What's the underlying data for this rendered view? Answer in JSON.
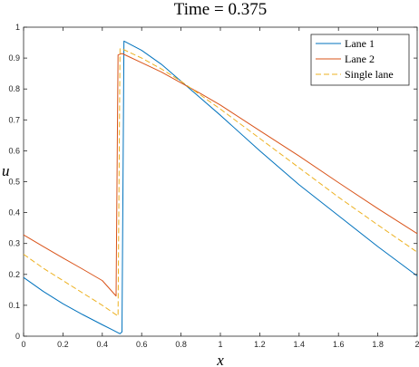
{
  "chart_data": {
    "type": "line",
    "title": "Time = 0.375",
    "xlabel": "x",
    "ylabel": "u",
    "xlim": [
      0,
      2
    ],
    "ylim": [
      0,
      1
    ],
    "xticks": [
      0,
      0.2,
      0.4,
      0.6,
      0.8,
      1,
      1.2,
      1.4,
      1.6,
      1.8,
      2
    ],
    "xtick_labels": [
      "0",
      "0.2",
      "0.4",
      "0.6",
      "0.8",
      "1",
      "1.2",
      "1.4",
      "1.6",
      "1.8",
      "2"
    ],
    "yticks": [
      0,
      0.1,
      0.2,
      0.3,
      0.4,
      0.5,
      0.6,
      0.7,
      0.8,
      0.9,
      1
    ],
    "ytick_labels": [
      "0",
      "0.1",
      "0.2",
      "0.3",
      "0.4",
      "0.5",
      "0.6",
      "0.7",
      "0.8",
      "0.9",
      "1"
    ],
    "grid": false,
    "legend_position": "top-right",
    "series": [
      {
        "name": "Lane 1",
        "color": "#0072BD",
        "style": "solid",
        "x": [
          0,
          0.1,
          0.2,
          0.3,
          0.4,
          0.45,
          0.49,
          0.5,
          0.51,
          0.6,
          0.7,
          0.8,
          0.9,
          1.0,
          1.2,
          1.4,
          1.6,
          1.8,
          2.0
        ],
        "y": [
          0.19,
          0.145,
          0.105,
          0.07,
          0.037,
          0.021,
          0.008,
          0.014,
          0.955,
          0.925,
          0.88,
          0.825,
          0.77,
          0.715,
          0.6,
          0.49,
          0.39,
          0.29,
          0.195
        ]
      },
      {
        "name": "Lane 2",
        "color": "#D95319",
        "style": "solid",
        "x": [
          0,
          0.1,
          0.2,
          0.3,
          0.4,
          0.47,
          0.48,
          0.5,
          0.6,
          0.7,
          0.8,
          0.9,
          1.0,
          1.2,
          1.4,
          1.6,
          1.8,
          2.0
        ],
        "y": [
          0.328,
          0.29,
          0.253,
          0.217,
          0.18,
          0.13,
          0.91,
          0.915,
          0.885,
          0.855,
          0.82,
          0.785,
          0.748,
          0.665,
          0.583,
          0.497,
          0.413,
          0.332
        ]
      },
      {
        "name": "Single lane",
        "color": "#EDB120",
        "style": "dashed",
        "x": [
          0,
          0.1,
          0.2,
          0.3,
          0.4,
          0.48,
          0.49,
          0.5,
          0.6,
          0.7,
          0.8,
          0.9,
          1.0,
          1.2,
          1.4,
          1.6,
          1.8,
          2.0
        ],
        "y": [
          0.265,
          0.22,
          0.18,
          0.14,
          0.1,
          0.065,
          0.93,
          0.93,
          0.9,
          0.865,
          0.825,
          0.78,
          0.735,
          0.64,
          0.545,
          0.45,
          0.36,
          0.272
        ]
      }
    ]
  }
}
